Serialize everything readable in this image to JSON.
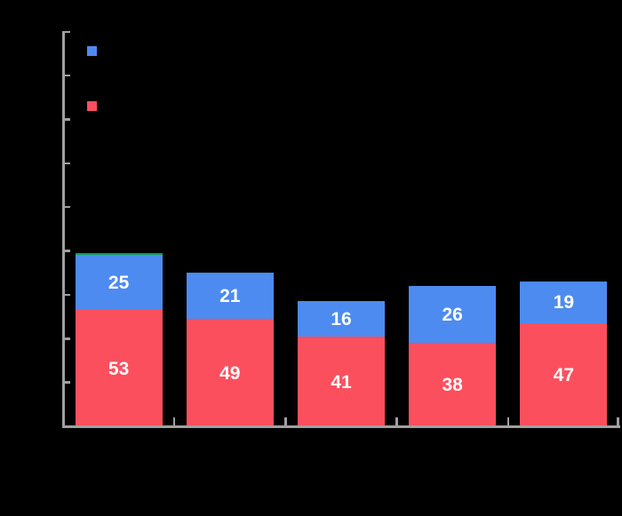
{
  "window": {
    "background": "#000000"
  },
  "chart_data": {
    "type": "bar",
    "stacked": true,
    "title": "",
    "xlabel": "",
    "ylabel": "",
    "categories": [
      "",
      "",
      "",
      "",
      ""
    ],
    "series": [
      {
        "id": "red",
        "color": "#FC4F5E",
        "values": [
          53,
          49,
          41,
          38,
          47
        ],
        "show_values": true
      },
      {
        "id": "blue",
        "color": "#4D8BF0",
        "values": [
          25,
          21,
          16,
          26,
          19
        ],
        "show_values": true
      },
      {
        "id": "green",
        "color": "#0F9D58",
        "values": [
          1,
          0,
          0,
          0,
          0
        ],
        "show_values": false
      }
    ],
    "value_label_color": "#FFFFFF",
    "axis_color": "#A0A0A0",
    "ylim": [
      0,
      180
    ],
    "ytick_step": 20,
    "grid": false,
    "legend": {
      "position": "top-left",
      "items": [
        {
          "swatch_color": "#4D8BF0",
          "label": ""
        },
        {
          "swatch_color": "#FC4F5E",
          "label": ""
        }
      ]
    }
  }
}
